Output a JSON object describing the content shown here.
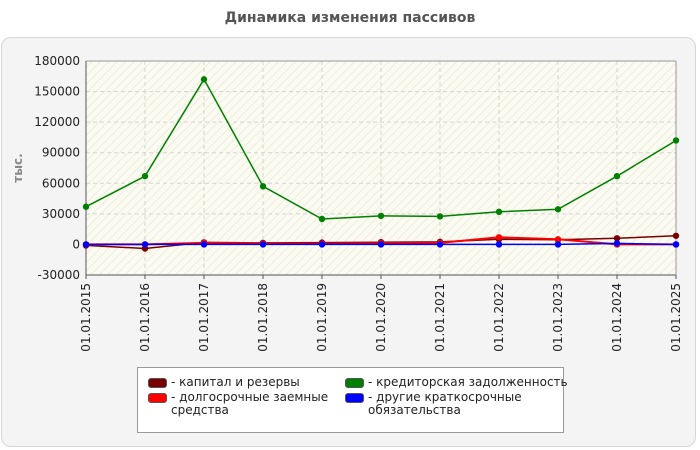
{
  "title": "Динамика изменения пассивов",
  "chart_data": {
    "type": "line",
    "title": "Динамика изменения пассивов",
    "ylabel": "тыс.",
    "xlabel": "",
    "categories": [
      "01.01.2015",
      "01.01.2016",
      "01.01.2017",
      "01.01.2018",
      "01.01.2019",
      "01.01.2020",
      "01.01.2021",
      "01.01.2022",
      "01.01.2023",
      "01.01.2024",
      "01.01.2025"
    ],
    "ylim": [
      -30000,
      180000
    ],
    "yticks": [
      "180000",
      "150000",
      "120000",
      "90000",
      "60000",
      "30000",
      "0",
      "-30000"
    ],
    "grid": true,
    "legend_position": "bottom",
    "series": [
      {
        "name": "- капитал и резервы",
        "color": "#7a0000",
        "values": [
          -1000,
          -4000,
          2000,
          1500,
          1800,
          2200,
          2500,
          5000,
          4500,
          6000,
          8500
        ]
      },
      {
        "name": "- долгосрочные заемные средства",
        "color": "#ff0000",
        "values": [
          0,
          0,
          1500,
          1000,
          800,
          1200,
          1500,
          7000,
          5000,
          0,
          0
        ]
      },
      {
        "name": "- кредиторская задолженность",
        "color": "#008000",
        "values": [
          37000,
          67000,
          162000,
          57000,
          25000,
          28000,
          27500,
          32000,
          34500,
          67000,
          102000
        ]
      },
      {
        "name": "- другие краткосрочные обязательства",
        "color": "#0000ff",
        "values": [
          0,
          0,
          0,
          0,
          0,
          0,
          0,
          0,
          0,
          1000,
          0
        ]
      }
    ]
  }
}
